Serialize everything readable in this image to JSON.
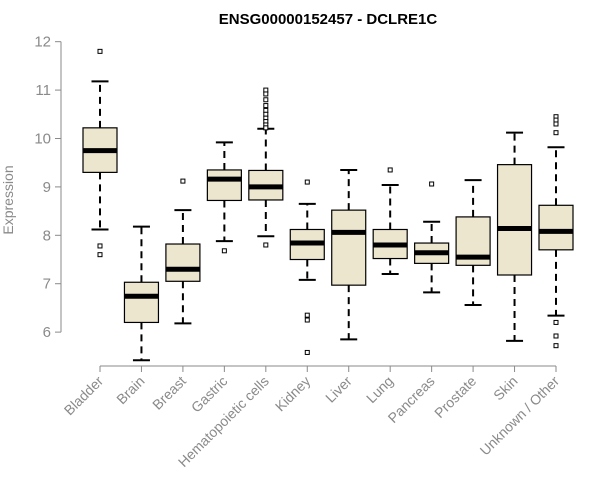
{
  "chart_data": {
    "type": "boxplot",
    "title": "ENSG00000152457 - DCLRE1C",
    "xlabel": "",
    "ylabel": "Expression",
    "ylim": [
      5.3,
      12.2
    ],
    "yticks": [
      6,
      7,
      8,
      9,
      10,
      11,
      12
    ],
    "grid": false,
    "legend": "none",
    "colors": {
      "box_fill": "#ede6cf",
      "box_stroke": "#000000",
      "axis": "#8a8a8a"
    },
    "categories": [
      "Bladder",
      "Brain",
      "Breast",
      "Gastric",
      "Hematopoietic cells",
      "Kidney",
      "Liver",
      "Lung",
      "Pancreas",
      "Prostate",
      "Skin",
      "Unknown / Other"
    ],
    "boxes": [
      {
        "category": "Bladder",
        "whisker_low": 8.12,
        "q1": 9.3,
        "median": 9.75,
        "q3": 10.22,
        "whisker_high": 11.18,
        "outliers": [
          11.8,
          7.78,
          7.6
        ]
      },
      {
        "category": "Brain",
        "whisker_low": 5.42,
        "q1": 6.2,
        "median": 6.74,
        "q3": 7.03,
        "whisker_high": 8.18,
        "outliers": []
      },
      {
        "category": "Breast",
        "whisker_low": 6.18,
        "q1": 7.05,
        "median": 7.3,
        "q3": 7.82,
        "whisker_high": 8.52,
        "outliers": [
          9.12
        ]
      },
      {
        "category": "Gastric",
        "whisker_low": 7.88,
        "q1": 8.72,
        "median": 9.16,
        "q3": 9.35,
        "whisker_high": 9.92,
        "outliers": [
          7.68
        ]
      },
      {
        "category": "Hematopoietic cells",
        "whisker_low": 7.98,
        "q1": 8.73,
        "median": 9.0,
        "q3": 9.34,
        "whisker_high": 10.2,
        "outliers": [
          11.0,
          10.92,
          10.8,
          10.68,
          10.58,
          10.5,
          10.42,
          10.35,
          10.28,
          10.22,
          7.8
        ]
      },
      {
        "category": "Kidney",
        "whisker_low": 7.08,
        "q1": 7.5,
        "median": 7.84,
        "q3": 8.12,
        "whisker_high": 8.65,
        "outliers": [
          9.1,
          6.35,
          6.25,
          5.58
        ]
      },
      {
        "category": "Liver",
        "whisker_low": 5.85,
        "q1": 6.97,
        "median": 8.06,
        "q3": 8.52,
        "whisker_high": 9.35,
        "outliers": []
      },
      {
        "category": "Lung",
        "whisker_low": 7.2,
        "q1": 7.52,
        "median": 7.8,
        "q3": 8.12,
        "whisker_high": 9.04,
        "outliers": [
          9.35
        ]
      },
      {
        "category": "Pancreas",
        "whisker_low": 6.82,
        "q1": 7.42,
        "median": 7.64,
        "q3": 7.84,
        "whisker_high": 8.28,
        "outliers": [
          9.06
        ]
      },
      {
        "category": "Prostate",
        "whisker_low": 6.56,
        "q1": 7.38,
        "median": 7.55,
        "q3": 8.38,
        "whisker_high": 9.14,
        "outliers": []
      },
      {
        "category": "Skin",
        "whisker_low": 5.82,
        "q1": 7.18,
        "median": 8.14,
        "q3": 9.46,
        "whisker_high": 10.12,
        "outliers": []
      },
      {
        "category": "Unknown / Other",
        "whisker_low": 6.34,
        "q1": 7.7,
        "median": 8.08,
        "q3": 8.62,
        "whisker_high": 9.82,
        "outliers": [
          10.45,
          10.38,
          10.3,
          10.12,
          6.2,
          5.92,
          5.72
        ]
      }
    ]
  }
}
